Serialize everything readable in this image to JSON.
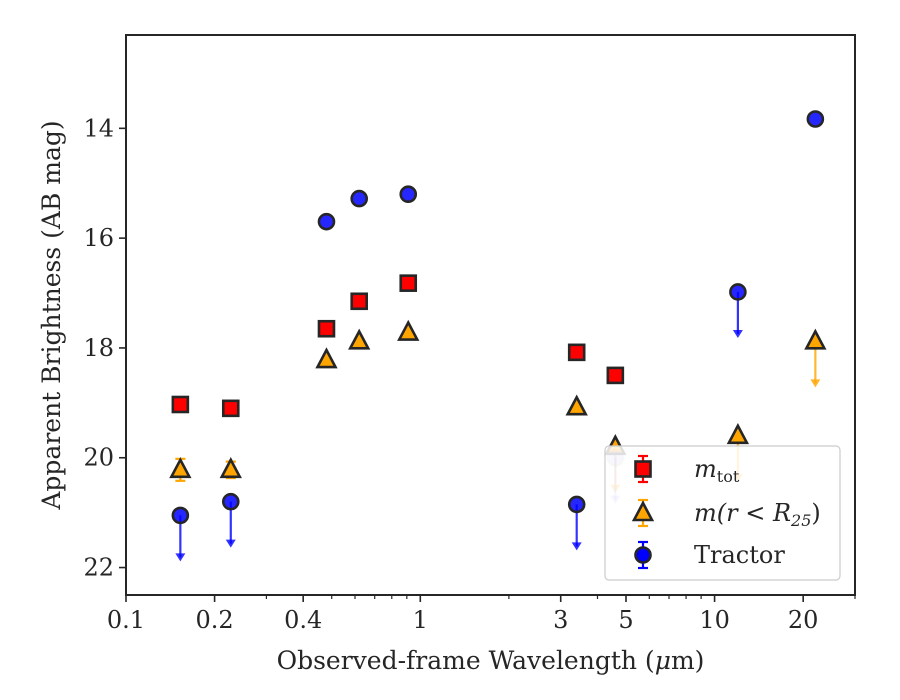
{
  "chart_data": {
    "type": "scatter",
    "xlabel_prefix": "Observed-frame Wavelength (",
    "xlabel_unit_mu": "μ",
    "xlabel_unit_rest": "m)",
    "ylabel": "Apparent Brightness (AB mag)",
    "x_scale": "log",
    "xlim": [
      0.1,
      30
    ],
    "ylim": [
      22.5,
      12.3
    ],
    "y_inverted": true,
    "grid": false,
    "legend_placement": "lower-right",
    "x_ticks": [
      {
        "value": 0.1,
        "label": "0.1"
      },
      {
        "value": 0.2,
        "label": "0.2"
      },
      {
        "value": 0.4,
        "label": "0.4"
      },
      {
        "value": 1,
        "label": "1"
      },
      {
        "value": 3,
        "label": "3"
      },
      {
        "value": 5,
        "label": "5"
      },
      {
        "value": 10,
        "label": "10"
      },
      {
        "value": 20,
        "label": "20"
      }
    ],
    "x_minor_ticks": [
      0.3,
      0.5,
      0.6,
      0.7,
      0.8,
      0.9,
      2,
      4,
      6,
      7,
      8,
      9,
      30
    ],
    "y_ticks": [
      {
        "value": 14,
        "label": "14"
      },
      {
        "value": 16,
        "label": "16"
      },
      {
        "value": 18,
        "label": "18"
      },
      {
        "value": 20,
        "label": "20"
      },
      {
        "value": 22,
        "label": "22"
      }
    ],
    "series": [
      {
        "key": "mtot",
        "name_main": "m",
        "name_sub": "tot",
        "marker": "square",
        "fill": "#ff0000",
        "edge": "#262626",
        "errcolor": "#ff0000",
        "points": [
          {
            "x": 0.153,
            "y": 19.03
          },
          {
            "x": 0.227,
            "y": 19.1
          },
          {
            "x": 0.48,
            "y": 17.65
          },
          {
            "x": 0.62,
            "y": 17.15
          },
          {
            "x": 0.91,
            "y": 16.82
          },
          {
            "x": 3.4,
            "y": 18.08
          },
          {
            "x": 4.6,
            "y": 18.5
          }
        ]
      },
      {
        "key": "mr25",
        "name_main": "m(r < R",
        "name_sub": "25",
        "name_end": ")",
        "marker": "triangle",
        "fill": "#ffa500",
        "edge": "#262626",
        "errcolor": "#ffa500",
        "points": [
          {
            "x": 0.153,
            "y": 20.22,
            "err": 0.2
          },
          {
            "x": 0.227,
            "y": 20.22,
            "err": 0.15
          },
          {
            "x": 0.48,
            "y": 18.22
          },
          {
            "x": 0.62,
            "y": 17.88
          },
          {
            "x": 0.91,
            "y": 17.72
          },
          {
            "x": 3.4,
            "y": 19.08
          },
          {
            "x": 4.6,
            "y": 19.8,
            "upper_limit": true
          },
          {
            "x": 12.0,
            "y": 19.6,
            "upper_limit": true
          },
          {
            "x": 22.0,
            "y": 17.88,
            "upper_limit": true
          }
        ]
      },
      {
        "key": "tractor",
        "name_main": "Tractor",
        "marker": "circle",
        "fill": "#0000ff",
        "edge": "#262626",
        "errcolor": "#0000ff",
        "points": [
          {
            "x": 0.153,
            "y": 21.05,
            "upper_limit": true
          },
          {
            "x": 0.227,
            "y": 20.8,
            "upper_limit": true
          },
          {
            "x": 0.48,
            "y": 15.7
          },
          {
            "x": 0.62,
            "y": 15.28
          },
          {
            "x": 0.91,
            "y": 15.2
          },
          {
            "x": 3.4,
            "y": 20.85,
            "upper_limit": true
          },
          {
            "x": 4.6,
            "y": 20.0,
            "upper_limit": true,
            "faded": true
          },
          {
            "x": 12.0,
            "y": 16.98,
            "upper_limit": true
          },
          {
            "x": 22.0,
            "y": 13.83
          }
        ]
      }
    ]
  }
}
